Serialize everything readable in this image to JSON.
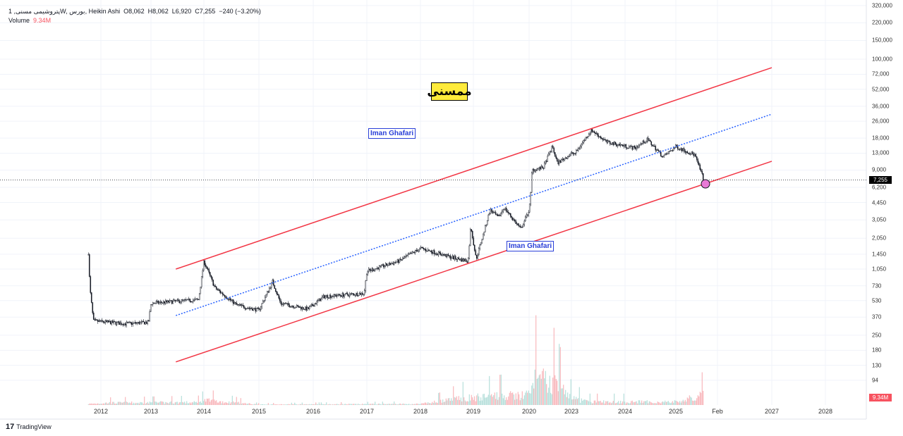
{
  "legend": {
    "symbol": "پتروشیمی مسنی, 1W, بورس, Heikin Ashi",
    "open": "O8,062",
    "high": "H8,062",
    "low": "L6,920",
    "close": "C7,255",
    "change": "−240 (−3.20%)",
    "volume_label": "Volume",
    "volume_value": "9.34M"
  },
  "sticker": "ممسنی",
  "notes": [
    "Iman Ghafari",
    "Iman Ghafari"
  ],
  "price_tag": "7,255",
  "volume_tag": "9.34M",
  "brand": "TradingView",
  "colors": {
    "up": "#131722",
    "channel": "#f23645",
    "midline": "#2962ff",
    "vol_up": "#a7d9d2",
    "vol_down": "#f7a9ae",
    "marker": "#e879d6"
  },
  "chart_data": {
    "type": "candlestick",
    "scale": "log",
    "ylim": [
      70,
      320000
    ],
    "y_ticks": [
      "320,000",
      "220,000",
      "150,000",
      "100,000",
      "72,000",
      "52,000",
      "36,000",
      "26,000",
      "18,000",
      "13,000",
      "9,000",
      "6,200",
      "4,450",
      "3,050",
      "2,050",
      "1,450",
      "1,050",
      "730",
      "530",
      "370",
      "250",
      "180",
      "130",
      "94"
    ],
    "y_tick_values": [
      320000,
      220000,
      150000,
      100000,
      72000,
      52000,
      36000,
      26000,
      18000,
      13000,
      9000,
      6200,
      4450,
      3050,
      2050,
      1450,
      1050,
      730,
      530,
      370,
      250,
      180,
      130,
      94
    ],
    "x_ticks": [
      "2012",
      "2013",
      "2014",
      "2015",
      "2016",
      "2017",
      "2018",
      "2019",
      "2020",
      "2023",
      "2024",
      "2025",
      "Feb",
      "2027",
      "2028"
    ],
    "x_tick_years": [
      2012,
      2013,
      2014,
      2015,
      2016,
      2017,
      2018,
      2019,
      2020,
      2023,
      2024,
      2025,
      2026.08,
      2027,
      2028
    ],
    "price_path": [
      [
        2011.75,
        1500
      ],
      [
        2011.78,
        700
      ],
      [
        2011.85,
        340
      ],
      [
        2012.5,
        320
      ],
      [
        2012.95,
        330
      ],
      [
        2013.0,
        500
      ],
      [
        2013.9,
        540
      ],
      [
        2014.0,
        1250
      ],
      [
        2014.2,
        700
      ],
      [
        2014.6,
        480
      ],
      [
        2015.0,
        430
      ],
      [
        2015.25,
        800
      ],
      [
        2015.4,
        500
      ],
      [
        2015.9,
        440
      ],
      [
        2016.2,
        580
      ],
      [
        2016.95,
        620
      ],
      [
        2017.0,
        1000
      ],
      [
        2017.6,
        1250
      ],
      [
        2018.0,
        1650
      ],
      [
        2018.6,
        1350
      ],
      [
        2018.9,
        1250
      ],
      [
        2018.95,
        2700
      ],
      [
        2019.05,
        1300
      ],
      [
        2019.3,
        3800
      ],
      [
        2019.45,
        3200
      ],
      [
        2019.55,
        4000
      ],
      [
        2019.85,
        2500
      ],
      [
        2020.1,
        5000
      ],
      [
        2020.2,
        9000
      ],
      [
        2021.0,
        9500
      ],
      [
        2021.65,
        15000
      ],
      [
        2022.0,
        10500
      ],
      [
        2023.07,
        13000
      ],
      [
        2023.37,
        21500
      ],
      [
        2023.66,
        16500
      ],
      [
        2024.19,
        14500
      ],
      [
        2024.44,
        17500
      ],
      [
        2024.75,
        12000
      ],
      [
        2025.0,
        15000
      ],
      [
        2025.49,
        12500
      ],
      [
        2025.73,
        7255
      ]
    ],
    "volume_profile": [
      [
        2011.75,
        0.1
      ],
      [
        2012.1,
        0.2
      ],
      [
        2013.95,
        0.25
      ],
      [
        2014.0,
        0.45
      ],
      [
        2015,
        0.05
      ],
      [
        2018,
        0.1
      ],
      [
        2018.95,
        0.7
      ],
      [
        2019.5,
        0.8
      ],
      [
        2020.1,
        1.0
      ],
      [
        2020.3,
        2.4
      ],
      [
        2021.7,
        2.1
      ],
      [
        2023.3,
        0.3
      ],
      [
        2025,
        0.3
      ],
      [
        2025.73,
        0.9
      ]
    ],
    "channel": {
      "upper": [
        [
          2013.47,
          1050
        ],
        [
          2027,
          83200
        ]
      ],
      "middle": [
        [
          2013.47,
          383
        ],
        [
          2027,
          30300
        ]
      ],
      "lower": [
        [
          2013.47,
          140
        ],
        [
          2027,
          10900
        ]
      ]
    },
    "last_price": 7255
  }
}
